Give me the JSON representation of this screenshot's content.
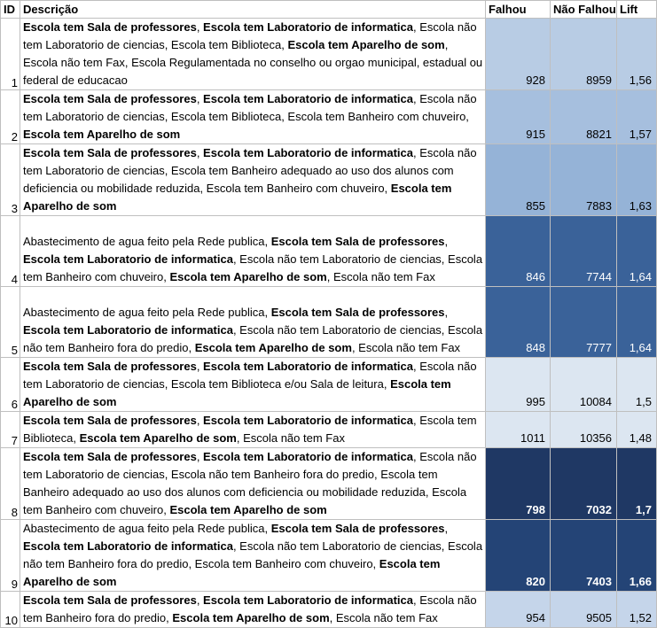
{
  "headers": {
    "id": "ID",
    "desc": "Descrição",
    "falhou": "Falhou",
    "nao_falhou": "Não Falhou",
    "lift": "Lift"
  },
  "rows": [
    {
      "id": "1",
      "desc": [
        {
          "t": "Escola tem Sala de professores",
          "b": true
        },
        {
          "t": ", ",
          "b": false
        },
        {
          "t": "Escola tem Laboratorio de informatica",
          "b": true
        },
        {
          "t": ", Escola não tem Laboratorio de ciencias, Escola tem Biblioteca, ",
          "b": false
        },
        {
          "t": "Escola tem Aparelho de som",
          "b": true
        },
        {
          "t": ", Escola não tem Fax, Escola Regulamentada no conselho ou orgao municipal, estadual ou federal de educacao",
          "b": false
        }
      ],
      "falhou": "928",
      "nao_falhou": "8959",
      "lift": "1,56",
      "bg": "#b8cce4",
      "fg": "#000000",
      "bold_nums": false,
      "height": 80
    },
    {
      "id": "2",
      "desc": [
        {
          "t": "Escola tem Sala de professores",
          "b": true
        },
        {
          "t": ", ",
          "b": false
        },
        {
          "t": "Escola tem Laboratorio de informatica",
          "b": true
        },
        {
          "t": ", Escola não tem Laboratorio de ciencias, Escola tem Biblioteca, Escola tem Banheiro com chuveiro, ",
          "b": false
        },
        {
          "t": "Escola tem Aparelho de som",
          "b": true
        }
      ],
      "falhou": "915",
      "nao_falhou": "8821",
      "lift": "1,57",
      "bg": "#a6bfde",
      "fg": "#000000",
      "bold_nums": false,
      "height": 60
    },
    {
      "id": "3",
      "desc": [
        {
          "t": "Escola tem Sala de professores",
          "b": true
        },
        {
          "t": ", ",
          "b": false
        },
        {
          "t": "Escola tem Laboratorio de informatica",
          "b": true
        },
        {
          "t": ", Escola não tem Laboratorio de ciencias, Escola tem Banheiro adequado ao uso dos alunos com deficiencia ou mobilidade reduzida, Escola tem Banheiro com chuveiro, ",
          "b": false
        },
        {
          "t": "Escola tem Aparelho de som",
          "b": true
        }
      ],
      "falhou": "855",
      "nao_falhou": "7883",
      "lift": "1,63",
      "bg": "#95b3d7",
      "fg": "#000000",
      "bold_nums": false,
      "height": 80
    },
    {
      "id": "4",
      "desc": [
        {
          "t": "Abastecimento de agua feito pela Rede publica, ",
          "b": false
        },
        {
          "t": "Escola tem Sala de professores",
          "b": true
        },
        {
          "t": ", ",
          "b": false
        },
        {
          "t": "Escola tem Laboratorio de informatica",
          "b": true
        },
        {
          "t": ", Escola não tem Laboratorio de ciencias, Escola tem Banheiro com chuveiro, ",
          "b": false
        },
        {
          "t": "Escola tem Aparelho de som",
          "b": true
        },
        {
          "t": ", Escola não tem Fax",
          "b": false
        }
      ],
      "falhou": "846",
      "nao_falhou": "7744",
      "lift": "1,64",
      "bg": "#3a6299",
      "fg": "#ffffff",
      "bold_nums": false,
      "height": 80
    },
    {
      "id": "5",
      "desc": [
        {
          "t": "Abastecimento de agua feito pela Rede publica, ",
          "b": false
        },
        {
          "t": "Escola tem Sala de professores",
          "b": true
        },
        {
          "t": ", ",
          "b": false
        },
        {
          "t": "Escola tem Laboratorio de informatica",
          "b": true
        },
        {
          "t": ", Escola não tem Laboratorio de ciencias, Escola não tem Banheiro fora do predio, ",
          "b": false
        },
        {
          "t": "Escola tem Aparelho de som",
          "b": true
        },
        {
          "t": ", Escola não tem Fax",
          "b": false
        }
      ],
      "falhou": "848",
      "nao_falhou": "7777",
      "lift": "1,64",
      "bg": "#3a6299",
      "fg": "#ffffff",
      "bold_nums": false,
      "height": 80
    },
    {
      "id": "6",
      "desc": [
        {
          "t": "Escola tem Sala de professores",
          "b": true
        },
        {
          "t": ", ",
          "b": false
        },
        {
          "t": "Escola tem Laboratorio de informatica",
          "b": true
        },
        {
          "t": ", Escola não tem Laboratorio de ciencias, Escola tem Biblioteca e/ou Sala de leitura, ",
          "b": false
        },
        {
          "t": "Escola tem Aparelho de som",
          "b": true
        }
      ],
      "falhou": "995",
      "nao_falhou": "10084",
      "lift": "1,5",
      "bg": "#dce6f1",
      "fg": "#000000",
      "bold_nums": false,
      "height": 60
    },
    {
      "id": "7",
      "desc": [
        {
          "t": "Escola tem Sala de professores",
          "b": true
        },
        {
          "t": ", ",
          "b": false
        },
        {
          "t": "Escola tem Laboratorio de informatica",
          "b": true
        },
        {
          "t": ", Escola tem Biblioteca, ",
          "b": false
        },
        {
          "t": "Escola tem Aparelho de som",
          "b": true
        },
        {
          "t": ", Escola não tem Fax",
          "b": false
        }
      ],
      "falhou": "1011",
      "nao_falhou": "10356",
      "lift": "1,48",
      "bg": "#dce6f1",
      "fg": "#000000",
      "bold_nums": false,
      "height": 40
    },
    {
      "id": "8",
      "desc": [
        {
          "t": "Escola tem Sala de professores",
          "b": true
        },
        {
          "t": ", ",
          "b": false
        },
        {
          "t": "Escola tem Laboratorio de informatica",
          "b": true
        },
        {
          "t": ", Escola não tem Laboratorio de ciencias, Escola não tem Banheiro fora do predio, Escola tem Banheiro adequado ao uso dos alunos com deficiencia ou mobilidade reduzida, Escola tem Banheiro com chuveiro, ",
          "b": false
        },
        {
          "t": "Escola tem Aparelho de som",
          "b": true
        }
      ],
      "falhou": "798",
      "nao_falhou": "7032",
      "lift": "1,7",
      "bg": "#1f3864",
      "fg": "#ffffff",
      "bold_nums": true,
      "height": 80
    },
    {
      "id": "9",
      "desc": [
        {
          "t": "Abastecimento de agua feito pela Rede publica, ",
          "b": false
        },
        {
          "t": "Escola  tem Sala de professores",
          "b": true
        },
        {
          "t": ", ",
          "b": false
        },
        {
          "t": "Escola tem Laboratorio de informatica",
          "b": true
        },
        {
          "t": ", Escola não tem Laboratorio de ciencias, Escola não tem Banheiro fora do predio, Escola tem Banheiro com chuveiro, ",
          "b": false
        },
        {
          "t": "Escola tem Aparelho de som",
          "b": true
        }
      ],
      "falhou": "820",
      "nao_falhou": "7403",
      "lift": "1,66",
      "bg": "#244476",
      "fg": "#ffffff",
      "bold_nums": true,
      "height": 80
    },
    {
      "id": "10",
      "desc": [
        {
          "t": "Escola tem Sala de professores",
          "b": true
        },
        {
          "t": ", ",
          "b": false
        },
        {
          "t": "Escola tem Laboratorio de informatica",
          "b": true
        },
        {
          "t": ", Escola não tem Banheiro fora do predio, ",
          "b": false
        },
        {
          "t": "Escola tem Aparelho de som",
          "b": true
        },
        {
          "t": ", Escola não tem Fax",
          "b": false
        }
      ],
      "falhou": "954",
      "nao_falhou": "9505",
      "lift": "1,52",
      "bg": "#c5d5ea",
      "fg": "#000000",
      "bold_nums": false,
      "height": 40
    }
  ]
}
